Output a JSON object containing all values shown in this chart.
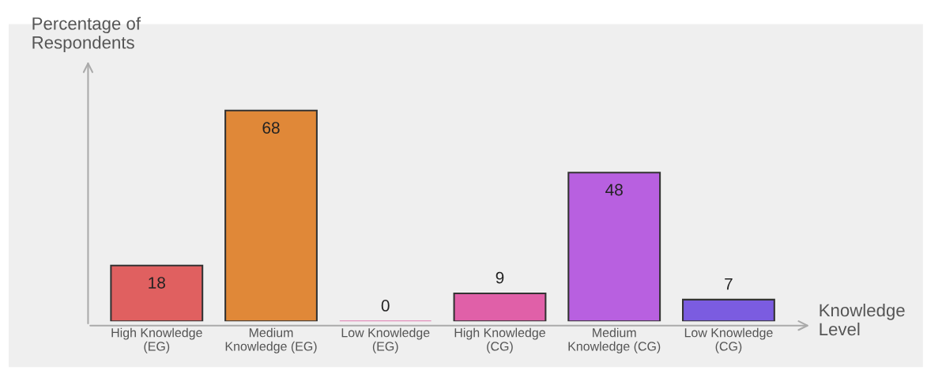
{
  "chart_data": {
    "type": "bar",
    "xlabel": "Knowledge Level",
    "ylabel": "Percentage of\nRespondents",
    "categories": [
      "High Knowledge\n(EG)",
      "Medium\nKnowledge (EG)",
      "Low Knowledge\n(EG)",
      "High Knowledge\n(CG)",
      "Medium\nKnowledge (CG)",
      "Low Knowledge\n(CG)"
    ],
    "values": [
      18,
      68,
      0,
      9,
      48,
      7
    ],
    "colors": [
      "#e06060",
      "#e08838",
      "#e07ab0",
      "#e060a8",
      "#b860e0",
      "#7b5ce0"
    ],
    "data_labels": true,
    "grid": false,
    "legend": false
  }
}
